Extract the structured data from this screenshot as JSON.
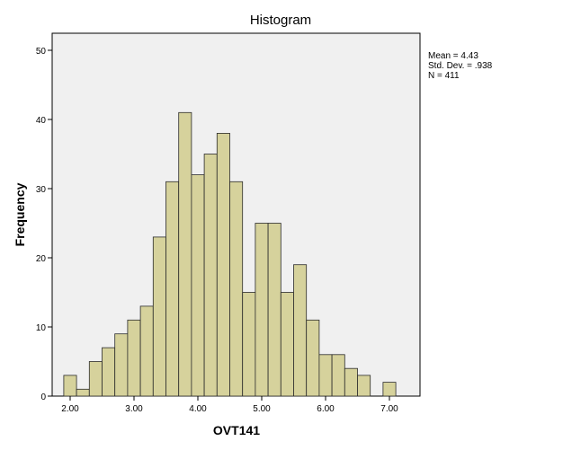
{
  "chart_data": {
    "type": "bar",
    "subtype": "histogram",
    "title": "Histogram",
    "xlabel": "OVT141",
    "ylabel": "Frequency",
    "xlim": [
      1.6,
      7.4
    ],
    "ylim": [
      0,
      52
    ],
    "x_ticks": [
      2.0,
      3.0,
      4.0,
      5.0,
      6.0,
      7.0
    ],
    "x_tick_labels": [
      "2.00",
      "3.00",
      "4.00",
      "5.00",
      "6.00",
      "7.00"
    ],
    "y_ticks": [
      0,
      10,
      20,
      30,
      40,
      50
    ],
    "y_tick_labels": [
      "0",
      "10",
      "20",
      "30",
      "40",
      "50"
    ],
    "bin_width": 0.2,
    "bin_starts": [
      1.9,
      2.1,
      2.3,
      2.5,
      2.7,
      2.9,
      3.1,
      3.3,
      3.5,
      3.7,
      3.9,
      4.1,
      4.3,
      4.5,
      4.7,
      4.9,
      5.1,
      5.3,
      5.5,
      5.7,
      5.9,
      6.1,
      6.3,
      6.5,
      6.7,
      6.9,
      7.1
    ],
    "values": [
      3,
      1,
      5,
      7,
      9,
      11,
      13,
      23,
      31,
      41,
      32,
      35,
      38,
      31,
      15,
      25,
      25,
      15,
      19,
      11,
      6,
      6,
      4,
      3,
      0,
      2,
      0
    ],
    "grid": false,
    "bar_color": "#d6d29c",
    "bar_edge_color": "#2b2b2b",
    "plot_background": "#f0f0f0"
  },
  "stats": {
    "mean": "Mean = 4.43",
    "std_dev": "Std. Dev. = .938",
    "n": "N = 411"
  }
}
